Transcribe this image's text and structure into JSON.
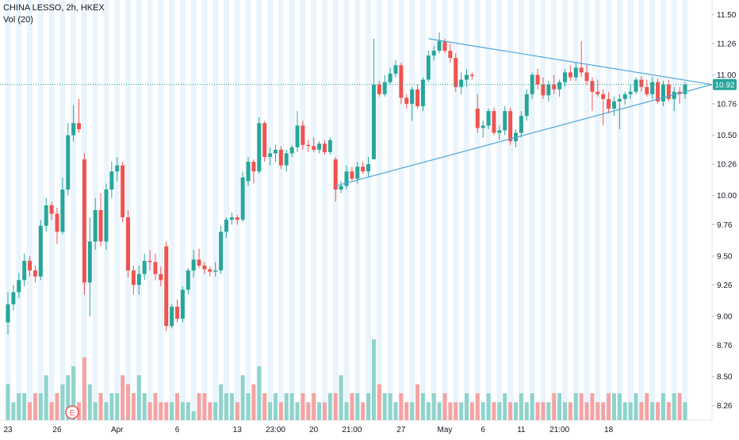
{
  "legend": {
    "symbol_line": "CHINA LESSO, 2h, HKEX",
    "volume_line": "Vol (20)"
  },
  "price_badge": "10.92",
  "earnings_marker": "E",
  "colors": {
    "up": "#26a69a",
    "down": "#ef5350",
    "vol_up": "#8fd3cb",
    "vol_down": "#f5a3a2",
    "trendline": "#4ea7d8",
    "price_line": "#26a69a",
    "session_band": "#e3f0fb",
    "axis_text": "#131722"
  },
  "chart_data": {
    "type": "candlestick",
    "title": "CHINA LESSO, 2h, HKEX",
    "y_axis": {
      "ticks": [
        "11.50",
        "11.26",
        "11.00",
        "10.76",
        "10.50",
        "10.26",
        "10.00",
        "9.76",
        "9.50",
        "9.26",
        "9.00",
        "8.76",
        "8.50",
        "8.26"
      ],
      "range": [
        8.14,
        11.62
      ],
      "current_price": 10.92
    },
    "x_axis": {
      "ticks": [
        "23",
        "26",
        "Apr",
        "6",
        "13",
        "23:00",
        "20",
        "21:00",
        "27",
        "May",
        "6",
        "11",
        "21:00",
        "18"
      ]
    },
    "indicators": [
      {
        "name": "Vol (20)"
      }
    ],
    "candles": [
      [
        8.95,
        9.2,
        8.85,
        9.1
      ],
      [
        9.1,
        9.26,
        9.05,
        9.2
      ],
      [
        9.2,
        9.36,
        9.15,
        9.3
      ],
      [
        9.3,
        9.52,
        9.25,
        9.46
      ],
      [
        9.46,
        9.5,
        9.33,
        9.38
      ],
      [
        9.38,
        9.42,
        9.28,
        9.33
      ],
      [
        9.33,
        9.8,
        9.3,
        9.75
      ],
      [
        9.75,
        9.98,
        9.7,
        9.92
      ],
      [
        9.92,
        9.95,
        9.8,
        9.85
      ],
      [
        9.85,
        9.9,
        9.6,
        9.7
      ],
      [
        9.7,
        10.15,
        9.68,
        10.05
      ],
      [
        10.05,
        10.6,
        10.0,
        10.5
      ],
      [
        10.5,
        10.75,
        10.45,
        10.6
      ],
      [
        10.6,
        10.8,
        10.52,
        10.55
      ],
      [
        10.3,
        10.35,
        9.18,
        9.28
      ],
      [
        9.28,
        9.82,
        9.0,
        9.62
      ],
      [
        9.62,
        9.98,
        9.55,
        9.88
      ],
      [
        9.88,
        10.02,
        9.58,
        9.62
      ],
      [
        9.62,
        10.1,
        9.55,
        10.05
      ],
      [
        10.05,
        10.28,
        9.98,
        10.2
      ],
      [
        10.2,
        10.32,
        10.12,
        10.25
      ],
      [
        10.25,
        10.28,
        9.78,
        9.82
      ],
      [
        9.82,
        9.88,
        9.32,
        9.38
      ],
      [
        9.38,
        9.42,
        9.18,
        9.26
      ],
      [
        9.26,
        9.42,
        9.18,
        9.35
      ],
      [
        9.35,
        9.52,
        9.3,
        9.46
      ],
      [
        9.46,
        9.55,
        9.38,
        9.45
      ],
      [
        9.45,
        9.52,
        9.3,
        9.35
      ],
      [
        9.35,
        9.41,
        9.25,
        9.3
      ],
      [
        9.58,
        9.62,
        8.88,
        8.92
      ],
      [
        8.92,
        9.1,
        8.9,
        9.08
      ],
      [
        9.08,
        9.14,
        8.95,
        8.98
      ],
      [
        8.98,
        9.25,
        8.95,
        9.22
      ],
      [
        9.22,
        9.4,
        9.18,
        9.38
      ],
      [
        9.38,
        9.55,
        9.32,
        9.47
      ],
      [
        9.47,
        9.56,
        9.4,
        9.42
      ],
      [
        9.42,
        9.45,
        9.35,
        9.39
      ],
      [
        9.39,
        9.41,
        9.33,
        9.37
      ],
      [
        9.37,
        9.45,
        9.33,
        9.38
      ],
      [
        9.38,
        9.75,
        9.35,
        9.7
      ],
      [
        9.7,
        9.82,
        9.65,
        9.8
      ],
      [
        9.8,
        9.86,
        9.76,
        9.82
      ],
      [
        9.82,
        9.84,
        9.76,
        9.8
      ],
      [
        9.8,
        10.2,
        9.78,
        10.15
      ],
      [
        10.12,
        10.32,
        10.08,
        10.28
      ],
      [
        10.28,
        10.3,
        10.1,
        10.2
      ],
      [
        10.2,
        10.65,
        10.18,
        10.6
      ],
      [
        10.6,
        10.62,
        10.28,
        10.32
      ],
      [
        10.32,
        10.4,
        10.25,
        10.35
      ],
      [
        10.35,
        10.42,
        10.28,
        10.38
      ],
      [
        10.38,
        10.41,
        10.22,
        10.25
      ],
      [
        10.25,
        10.38,
        10.2,
        10.35
      ],
      [
        10.35,
        10.42,
        10.32,
        10.4
      ],
      [
        10.4,
        10.7,
        10.36,
        10.58
      ],
      [
        10.58,
        10.62,
        10.38,
        10.42
      ],
      [
        10.42,
        10.46,
        10.36,
        10.41
      ],
      [
        10.41,
        10.48,
        10.36,
        10.38
      ],
      [
        10.38,
        10.45,
        10.35,
        10.43
      ],
      [
        10.43,
        10.46,
        10.34,
        10.36
      ],
      [
        10.36,
        10.48,
        10.34,
        10.46
      ],
      [
        10.3,
        10.32,
        9.95,
        10.05
      ],
      [
        10.05,
        10.12,
        10.02,
        10.08
      ],
      [
        10.08,
        10.25,
        10.05,
        10.2
      ],
      [
        10.2,
        10.24,
        10.12,
        10.14
      ],
      [
        10.14,
        10.28,
        10.1,
        10.24
      ],
      [
        10.24,
        10.28,
        10.18,
        10.2
      ],
      [
        10.2,
        10.32,
        10.15,
        10.26
      ],
      [
        10.3,
        11.3,
        10.3,
        10.92
      ],
      [
        10.92,
        10.95,
        10.82,
        10.84
      ],
      [
        10.84,
        11.0,
        10.82,
        10.94
      ],
      [
        10.94,
        11.06,
        10.92,
        11.01
      ],
      [
        11.01,
        11.12,
        10.98,
        11.08
      ],
      [
        11.08,
        11.1,
        10.76,
        10.81
      ],
      [
        10.81,
        10.84,
        10.72,
        10.76
      ],
      [
        10.76,
        10.9,
        10.62,
        10.88
      ],
      [
        10.88,
        10.92,
        10.72,
        10.74
      ],
      [
        10.74,
        10.98,
        10.7,
        10.96
      ],
      [
        10.96,
        11.2,
        10.94,
        11.16
      ],
      [
        11.16,
        11.24,
        11.12,
        11.2
      ],
      [
        11.2,
        11.35,
        11.18,
        11.28
      ],
      [
        11.28,
        11.3,
        11.18,
        11.2
      ],
      [
        11.2,
        11.26,
        11.1,
        11.14
      ],
      [
        11.14,
        11.18,
        10.86,
        10.9
      ],
      [
        10.9,
        11.02,
        10.84,
        10.96
      ],
      [
        10.96,
        11.05,
        10.9,
        11.0
      ],
      [
        11.0,
        11.02,
        10.96,
        10.99
      ],
      [
        10.72,
        10.84,
        10.52,
        10.56
      ],
      [
        10.56,
        10.62,
        10.48,
        10.58
      ],
      [
        10.58,
        10.72,
        10.55,
        10.7
      ],
      [
        10.7,
        10.73,
        10.5,
        10.52
      ],
      [
        10.52,
        10.58,
        10.46,
        10.54
      ],
      [
        10.54,
        10.74,
        10.5,
        10.7
      ],
      [
        10.7,
        10.73,
        10.42,
        10.45
      ],
      [
        10.45,
        10.55,
        10.4,
        10.52
      ],
      [
        10.52,
        10.7,
        10.48,
        10.66
      ],
      [
        10.66,
        10.88,
        10.62,
        10.84
      ],
      [
        10.84,
        11.02,
        10.8,
        11.0
      ],
      [
        11.0,
        11.05,
        10.88,
        10.92
      ],
      [
        10.92,
        10.98,
        10.8,
        10.83
      ],
      [
        10.83,
        10.95,
        10.78,
        10.92
      ],
      [
        10.92,
        11.0,
        10.84,
        10.88
      ],
      [
        10.88,
        10.96,
        10.82,
        10.94
      ],
      [
        10.94,
        11.05,
        10.9,
        11.02
      ],
      [
        11.02,
        11.08,
        10.95,
        10.98
      ],
      [
        10.98,
        11.1,
        10.95,
        11.06
      ],
      [
        11.06,
        11.28,
        10.98,
        11.02
      ],
      [
        11.02,
        11.08,
        10.92,
        10.95
      ],
      [
        10.95,
        10.98,
        10.7,
        10.86
      ],
      [
        10.86,
        10.96,
        10.82,
        10.84
      ],
      [
        10.84,
        10.88,
        10.58,
        10.8
      ],
      [
        10.8,
        10.86,
        10.68,
        10.72
      ],
      [
        10.72,
        10.82,
        10.66,
        10.78
      ],
      [
        10.78,
        10.84,
        10.55,
        10.8
      ],
      [
        10.8,
        10.86,
        10.75,
        10.84
      ],
      [
        10.84,
        10.92,
        10.8,
        10.86
      ],
      [
        10.86,
        10.98,
        10.84,
        10.96
      ],
      [
        10.96,
        10.99,
        10.86,
        10.9
      ],
      [
        10.9,
        10.96,
        10.82,
        10.84
      ],
      [
        10.84,
        10.98,
        10.8,
        10.94
      ],
      [
        10.94,
        10.97,
        10.76,
        10.78
      ],
      [
        10.78,
        10.95,
        10.74,
        10.92
      ],
      [
        10.92,
        10.96,
        10.78,
        10.8
      ],
      [
        10.8,
        10.9,
        10.7,
        10.86
      ],
      [
        10.86,
        10.9,
        10.76,
        10.84
      ],
      [
        10.84,
        10.94,
        10.8,
        10.92
      ]
    ],
    "volume": [
      4,
      2,
      3,
      3,
      2,
      3,
      3,
      5,
      2,
      3,
      4,
      5,
      6,
      2,
      7,
      4,
      2,
      3,
      2,
      3,
      3,
      5,
      4,
      3,
      5,
      3,
      2,
      3,
      2,
      2,
      2,
      3,
      2,
      2,
      1,
      3,
      3,
      2,
      2,
      4,
      3,
      3,
      2,
      5,
      3,
      4,
      6,
      3,
      2,
      3,
      2,
      3,
      3,
      2,
      3,
      2,
      3,
      2,
      2,
      3,
      3,
      5,
      2,
      3,
      3,
      2,
      3,
      9,
      4,
      3,
      3,
      2,
      3,
      2,
      2,
      4,
      3,
      2,
      3,
      2,
      3,
      2,
      2,
      2,
      3,
      2,
      3,
      2,
      3,
      2,
      2,
      3,
      2,
      2,
      3,
      2,
      3,
      2,
      2,
      2,
      3,
      3,
      2,
      2,
      3,
      3,
      2,
      3,
      2,
      2,
      3,
      3,
      3,
      2,
      2,
      3,
      2,
      3,
      2,
      2,
      3,
      2,
      3,
      3,
      2
    ]
  }
}
